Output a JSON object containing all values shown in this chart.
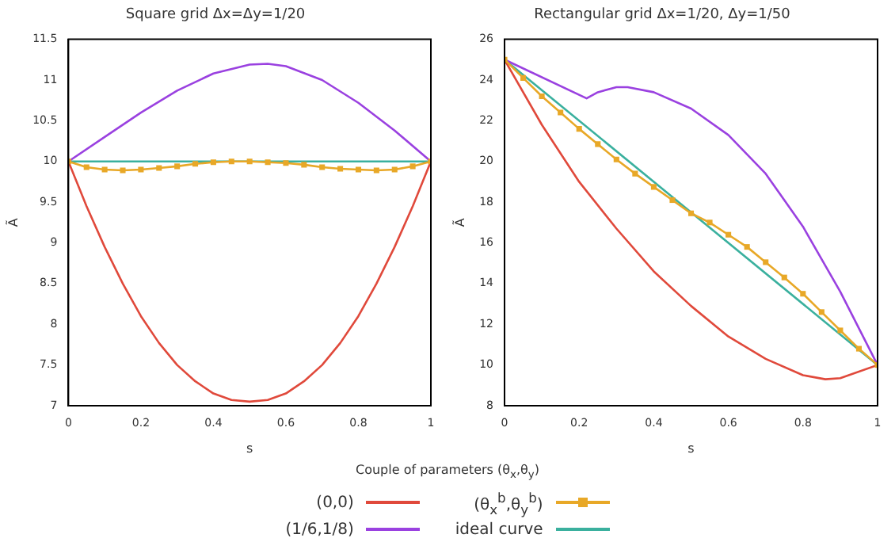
{
  "chart_data": [
    {
      "type": "line",
      "title": "Square grid Δx=Δy=1/20",
      "xlabel": "s",
      "ylabel": "Ã",
      "legend_title": "Couple of parameters (θ$_{x}$,θ$_{y}$)",
      "legend": "bottom",
      "grid": false,
      "xlim": [
        0,
        1
      ],
      "xticks": [
        0,
        0.2,
        0.4,
        0.6,
        0.8,
        1
      ],
      "ylim": [
        7,
        11.5
      ],
      "yticks": [
        7,
        7.5,
        8,
        8.5,
        9,
        9.5,
        10,
        10.5,
        11,
        11.5
      ],
      "series": [
        {
          "name": "(0,0)",
          "color": "#e0493b",
          "marker": "none",
          "x": [
            0,
            0.05,
            0.1,
            0.15,
            0.2,
            0.25,
            0.3,
            0.35,
            0.4,
            0.45,
            0.5,
            0.55,
            0.6,
            0.65,
            0.7,
            0.75,
            0.8,
            0.85,
            0.9,
            0.95,
            1
          ],
          "values": [
            10,
            9.45,
            8.95,
            8.5,
            8.1,
            7.77,
            7.5,
            7.3,
            7.15,
            7.07,
            7.05,
            7.07,
            7.15,
            7.3,
            7.5,
            7.77,
            8.1,
            8.5,
            8.95,
            9.45,
            10
          ]
        },
        {
          "name": "(1/6,1/8)",
          "color": "#9a41e0",
          "marker": "none",
          "x": [
            0,
            0.1,
            0.2,
            0.3,
            0.4,
            0.5,
            0.55,
            0.6,
            0.7,
            0.8,
            0.9,
            1
          ],
          "values": [
            10,
            10.3,
            10.6,
            10.87,
            11.08,
            11.19,
            11.2,
            11.17,
            11.0,
            10.72,
            10.38,
            10
          ]
        },
        {
          "name": "(θ$_{x}$$^{b}$,θ$_{y}$$^{b}$)",
          "color": "#e8a827",
          "marker": "square",
          "x": [
            0,
            0.05,
            0.1,
            0.15,
            0.2,
            0.25,
            0.3,
            0.35,
            0.4,
            0.45,
            0.5,
            0.55,
            0.6,
            0.65,
            0.7,
            0.75,
            0.8,
            0.85,
            0.9,
            0.95,
            1
          ],
          "values": [
            10,
            9.93,
            9.9,
            9.89,
            9.9,
            9.92,
            9.94,
            9.97,
            9.99,
            10,
            10,
            9.99,
            9.98,
            9.96,
            9.93,
            9.91,
            9.9,
            9.89,
            9.9,
            9.94,
            10
          ]
        },
        {
          "name": "ideal curve",
          "color": "#3ab09e",
          "marker": "none",
          "x": [
            0,
            1
          ],
          "values": [
            10,
            10
          ]
        }
      ]
    },
    {
      "type": "line",
      "title": "Rectangular grid Δx=1/20, Δy=1/50",
      "xlabel": "s",
      "ylabel": "Ã",
      "grid": false,
      "xlim": [
        0,
        1
      ],
      "xticks": [
        0,
        0.2,
        0.4,
        0.6,
        0.8,
        1
      ],
      "ylim": [
        8,
        26
      ],
      "yticks": [
        8,
        10,
        12,
        14,
        16,
        18,
        20,
        22,
        24,
        26
      ],
      "series": [
        {
          "color": "#e0493b",
          "marker": "none",
          "x": [
            0,
            0.1,
            0.2,
            0.3,
            0.4,
            0.5,
            0.6,
            0.7,
            0.8,
            0.86,
            0.9,
            1
          ],
          "values": [
            25,
            21.8,
            19.0,
            16.7,
            14.6,
            12.9,
            11.4,
            10.3,
            9.5,
            9.3,
            9.35,
            10
          ]
        },
        {
          "color": "#9a41e0",
          "marker": "none",
          "x": [
            0,
            0.22,
            0.25,
            0.3,
            0.33,
            0.4,
            0.5,
            0.6,
            0.7,
            0.8,
            0.9,
            1
          ],
          "values": [
            25,
            23.1,
            23.4,
            23.65,
            23.65,
            23.4,
            22.6,
            21.3,
            19.4,
            16.8,
            13.6,
            10
          ]
        },
        {
          "color": "#e8a827",
          "marker": "square",
          "x": [
            0,
            0.05,
            0.1,
            0.15,
            0.2,
            0.25,
            0.3,
            0.35,
            0.4,
            0.45,
            0.5,
            0.55,
            0.6,
            0.65,
            0.7,
            0.75,
            0.8,
            0.85,
            0.9,
            0.95,
            1
          ],
          "values": [
            25,
            24.1,
            23.2,
            22.4,
            21.6,
            20.85,
            20.1,
            19.4,
            18.75,
            18.1,
            17.45,
            17.0,
            16.4,
            15.8,
            15.05,
            14.3,
            13.5,
            12.6,
            11.7,
            10.8,
            10
          ]
        },
        {
          "color": "#3ab09e",
          "marker": "none",
          "x": [
            0,
            1
          ],
          "values": [
            25,
            10
          ]
        }
      ]
    }
  ]
}
